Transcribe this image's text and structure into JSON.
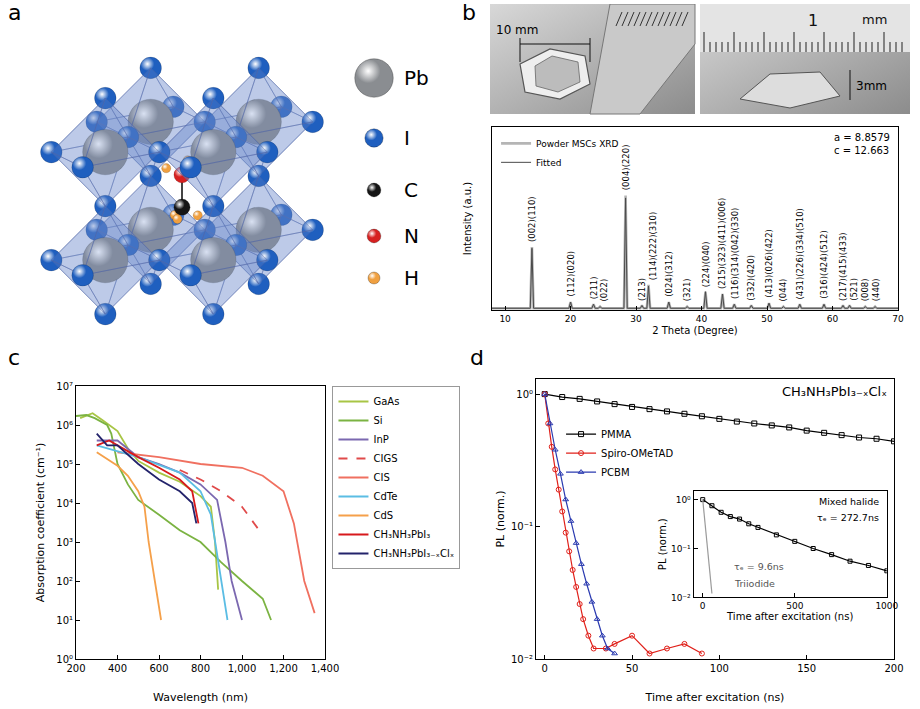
{
  "panel_labels": [
    "a",
    "b",
    "c",
    "d"
  ],
  "structure": {
    "atoms": [
      {
        "label": "Pb",
        "color": "#8a8d91"
      },
      {
        "label": "I",
        "color": "#1f5fbf"
      },
      {
        "label": "C",
        "color": "#151515"
      },
      {
        "label": "N",
        "color": "#d62020"
      },
      {
        "label": "H",
        "color": "#f0a040"
      }
    ]
  },
  "photos": {
    "labels": [
      "10 mm",
      "3mm"
    ],
    "ruler_labels": [
      "1",
      "mm"
    ]
  },
  "chart_data": [
    {
      "type": "line",
      "x_label": "2 Theta (Degree)",
      "y_label": "Intensity (a.u.)",
      "xlim": [
        8,
        70
      ],
      "xticks": [
        10,
        20,
        30,
        40,
        50,
        60,
        70
      ],
      "ylim": [
        0,
        1.6
      ],
      "tick_labels": "x",
      "grid": false,
      "legend": "upper left",
      "baseline": 0.015,
      "x": [
        14.1,
        20.0,
        23.5,
        24.5,
        28.4,
        30.9,
        31.9,
        35.0,
        37.8,
        40.6,
        43.2,
        45.0,
        47.6,
        50.3,
        52.5,
        55.0,
        58.7,
        61.6,
        62.6,
        65.0,
        66.5
      ],
      "peak_labels": [
        "(002)(110)",
        "(112)(020)",
        "(211)",
        "(022)",
        "(004)(220)",
        "(213)",
        "(114)(222)(310)",
        "(024)(312)",
        "(321)",
        "(224)(040)",
        "(215)(323)(411)(006)",
        "(116)(314)(042)(330)",
        "(332)(420)",
        "(413)(026)(422)",
        "(044)",
        "(431)(226)(334)(510)",
        "(316)(424)(512)",
        "(217)(415)(433)",
        "(521)",
        "(008)",
        "(440)"
      ],
      "series": [
        {
          "name": "Powder MSCs XRD",
          "color": "#b5b5b5",
          "values": [
            0.55,
            0.07,
            0.05,
            0.03,
            1.0,
            0.04,
            0.22,
            0.07,
            0.03,
            0.16,
            0.14,
            0.05,
            0.04,
            0.06,
            0.03,
            0.05,
            0.05,
            0.04,
            0.04,
            0.03,
            0.03
          ]
        },
        {
          "name": "Fitted",
          "color": "#4a4a4a",
          "values": [
            0.54,
            0.07,
            0.05,
            0.03,
            0.98,
            0.04,
            0.21,
            0.07,
            0.03,
            0.16,
            0.14,
            0.05,
            0.04,
            0.06,
            0.03,
            0.05,
            0.05,
            0.04,
            0.04,
            0.03,
            0.03
          ]
        }
      ],
      "annotations": [
        "a = 8.8579",
        "c = 12.663"
      ]
    },
    {
      "type": "line",
      "x_label": "Wavelength (nm)",
      "y_label": "Absorption coefficient (cm⁻¹)",
      "log": "y",
      "grid": false,
      "legend": "right",
      "xlim": [
        200,
        1400
      ],
      "xticks": [
        200,
        400,
        600,
        800,
        {
          "value": 1000,
          "label": "1,000"
        },
        {
          "value": 1200,
          "label": "1,200"
        },
        {
          "value": 1400,
          "label": "1,400"
        }
      ],
      "ylim": [
        1,
        10000000
      ],
      "yticks": [
        {
          "value": 1,
          "label": "10⁰"
        },
        {
          "value": 10,
          "label": "10¹"
        },
        {
          "value": 100,
          "label": "10²"
        },
        {
          "value": 1000,
          "label": "10³"
        },
        {
          "value": 10000,
          "label": "10⁴"
        },
        {
          "value": 100000,
          "label": "10⁵"
        },
        {
          "value": 1000000,
          "label": "10⁶"
        },
        {
          "value": 10000000,
          "label": "10⁷"
        }
      ],
      "series": [
        {
          "name": "GaAs",
          "color": "#a8c545",
          "line_style": "solid",
          "x": [
            220,
            280,
            330,
            400,
            450,
            500,
            600,
            700,
            800,
            850,
            870,
            885
          ],
          "values": [
            1500000,
            2000000,
            1300000,
            700000,
            250000,
            120000,
            60000,
            35000,
            15000,
            8000,
            1000,
            60
          ]
        },
        {
          "name": "Si",
          "color": "#7bb342",
          "line_style": "solid",
          "x": [
            200,
            250,
            290,
            350,
            370,
            400,
            450,
            500,
            600,
            700,
            800,
            900,
            1000,
            1100,
            1140
          ],
          "values": [
            1700000,
            1800000,
            1500000,
            1000000,
            600000,
            100000,
            30000,
            12000,
            5000,
            2000,
            1000,
            300,
            100,
            35,
            10
          ]
        },
        {
          "name": "InP",
          "color": "#7b68b0",
          "line_style": "solid",
          "x": [
            300,
            400,
            500,
            600,
            700,
            800,
            880,
            920,
            950,
            1000
          ],
          "values": [
            400000,
            400000,
            150000,
            100000,
            60000,
            30000,
            12000,
            1000,
            100,
            10
          ]
        },
        {
          "name": "CIGS",
          "color": "#e04a4a",
          "line_style": "dashed",
          "x": [
            700,
            800,
            900,
            1000,
            1100
          ],
          "values": [
            70000,
            40000,
            20000,
            8000,
            1500
          ]
        },
        {
          "name": "CIS",
          "color": "#f07060",
          "line_style": "solid",
          "x": [
            400,
            600,
            800,
            1000,
            1100,
            1200,
            1250,
            1300,
            1350
          ],
          "values": [
            200000,
            150000,
            100000,
            80000,
            50000,
            20000,
            3000,
            100,
            15
          ]
        },
        {
          "name": "CdTe",
          "color": "#5bbde4",
          "line_style": "solid",
          "x": [
            300,
            500,
            700,
            800,
            850,
            870,
            900,
            930
          ],
          "values": [
            300000,
            150000,
            60000,
            20000,
            5000,
            1000,
            100,
            10
          ]
        },
        {
          "name": "CdS",
          "color": "#f5a04a",
          "line_style": "solid",
          "x": [
            300,
            400,
            450,
            500,
            530,
            550,
            580,
            610
          ],
          "values": [
            200000,
            90000,
            50000,
            20000,
            8000,
            1000,
            100,
            10
          ]
        },
        {
          "name": "CH₃NH₃PbI₃",
          "color": "#d7191c",
          "line_style": "solid",
          "x": [
            300,
            360,
            400,
            500,
            600,
            700,
            760,
            780,
            790
          ],
          "values": [
            300000,
            400000,
            300000,
            150000,
            80000,
            40000,
            20000,
            5000,
            3000
          ]
        },
        {
          "name": "CH₃NH₃PbI₃₋ₓClₓ",
          "color": "#23236b",
          "line_style": "solid",
          "x": [
            300,
            350,
            400,
            500,
            600,
            700,
            760,
            780
          ],
          "values": [
            600000,
            300000,
            300000,
            100000,
            40000,
            20000,
            10000,
            3000
          ]
        }
      ]
    },
    {
      "type": "scatter",
      "title": "CH₃NH₃PbI₃₋ₓClₓ",
      "x_label": "Time after excitation (ns)",
      "y_label": "PL (norm.)",
      "log": "y",
      "grid": false,
      "legend": "upper left",
      "xlim": [
        -5,
        200
      ],
      "xticks": [
        0,
        50,
        100,
        150,
        200
      ],
      "ylim": [
        0.01,
        1.3
      ],
      "yticks": [
        {
          "value": 0.01,
          "label": "10⁻²"
        },
        {
          "value": 0.1,
          "label": "10⁻¹"
        },
        {
          "value": 1,
          "label": "10⁰"
        }
      ],
      "series": [
        {
          "name": "PMMA",
          "color": "#000000",
          "marker": "square-open",
          "x": [
            0,
            10,
            20,
            30,
            40,
            50,
            60,
            70,
            80,
            90,
            100,
            110,
            120,
            130,
            140,
            150,
            160,
            170,
            180,
            190,
            200
          ],
          "values": [
            1.0,
            0.95,
            0.92,
            0.88,
            0.84,
            0.8,
            0.77,
            0.74,
            0.71,
            0.68,
            0.65,
            0.62,
            0.6,
            0.58,
            0.56,
            0.53,
            0.51,
            0.49,
            0.47,
            0.46,
            0.44
          ]
        },
        {
          "name": "Spiro-OMeTAD",
          "color": "#e0201a",
          "marker": "circle-open",
          "x": [
            0,
            2,
            4,
            6,
            8,
            10,
            12,
            14,
            16,
            18,
            20,
            22,
            25,
            28,
            35,
            40,
            50,
            60,
            70,
            80,
            90
          ],
          "values": [
            1.0,
            0.6,
            0.4,
            0.27,
            0.19,
            0.13,
            0.09,
            0.065,
            0.047,
            0.035,
            0.026,
            0.02,
            0.015,
            0.012,
            0.012,
            0.013,
            0.015,
            0.011,
            0.012,
            0.013,
            0.011
          ]
        },
        {
          "name": "PCBM",
          "color": "#2a3ab0",
          "marker": "triangle-up-open",
          "x": [
            0,
            3,
            6,
            9,
            12,
            15,
            18,
            21,
            24,
            27,
            30,
            33,
            36,
            40
          ],
          "values": [
            1.0,
            0.6,
            0.38,
            0.25,
            0.16,
            0.11,
            0.075,
            0.052,
            0.037,
            0.027,
            0.02,
            0.015,
            0.012,
            0.011
          ]
        }
      ]
    },
    {
      "type": "scatter",
      "x_label": "Time after excitation (ns)",
      "y_label": "PL (norm.)",
      "log": "y",
      "grid": false,
      "xlim": [
        -50,
        1000
      ],
      "xticks": [
        0,
        500,
        1000
      ],
      "ylim": [
        0.01,
        1.5
      ],
      "yticks": [
        {
          "value": 0.01,
          "label": "10⁻²"
        },
        {
          "value": 0.1,
          "label": "10⁻¹"
        },
        {
          "value": 1,
          "label": "10⁰"
        }
      ],
      "series": [
        {
          "name": "Mixed halide",
          "color": "#000000",
          "marker": "square-open",
          "x": [
            0,
            50,
            100,
            150,
            200,
            250,
            300,
            400,
            500,
            600,
            700,
            800,
            900,
            1000
          ],
          "values": [
            1.0,
            0.75,
            0.55,
            0.45,
            0.4,
            0.32,
            0.27,
            0.19,
            0.14,
            0.1,
            0.075,
            0.055,
            0.045,
            0.035
          ]
        },
        {
          "name": "Triiodide",
          "color": "#9a9a9a",
          "line_style": "solid",
          "x": [
            0,
            10,
            20,
            30,
            40,
            50
          ],
          "values": [
            1.0,
            0.4,
            0.15,
            0.06,
            0.025,
            0.012
          ]
        }
      ],
      "annotations": [
        "τₑ = 272.7ns",
        "τₑ = 9.6ns"
      ]
    }
  ]
}
